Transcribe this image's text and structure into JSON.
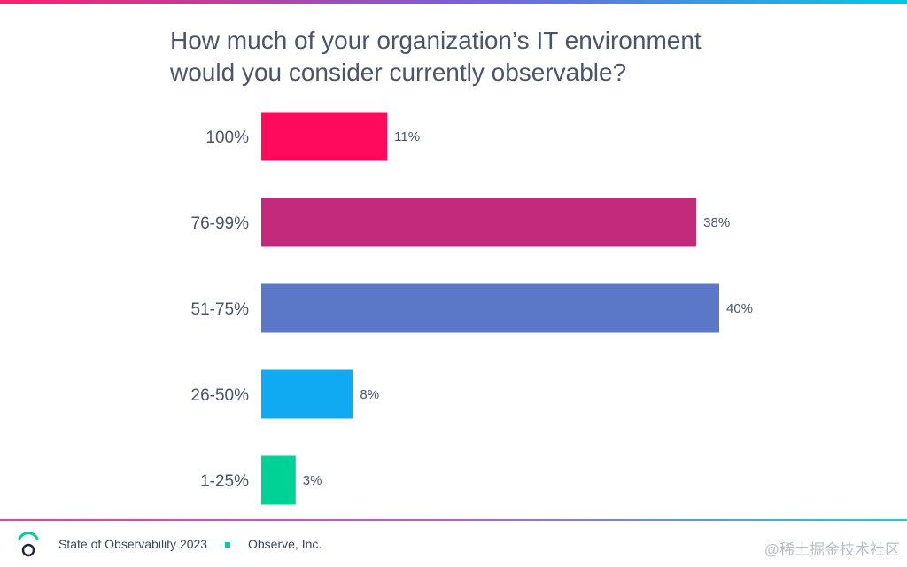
{
  "chart_data": {
    "type": "bar",
    "orientation": "horizontal",
    "title": "How much of your organization’s IT environment would you consider currently observable?",
    "title_lines": [
      "How much of your organization’s IT environment",
      "would you consider currently observable?"
    ],
    "categories": [
      "100%",
      "76-99%",
      "51-75%",
      "26-50%",
      "1-25%"
    ],
    "values": [
      11,
      38,
      40,
      8,
      3
    ],
    "value_labels": [
      "11%",
      "38%",
      "40%",
      "8%",
      "3%"
    ],
    "bar_colors": [
      "#ff0a5d",
      "#c42a7b",
      "#5b78c8",
      "#10aaf2",
      "#00d195"
    ],
    "xlim": [
      0,
      40
    ],
    "xlabel": "",
    "ylabel": "",
    "grid": false
  },
  "footer": {
    "report_name": "State of Observability 2023",
    "company": "Observe, Inc.",
    "watermark": "@稀土掘金技术社区"
  },
  "colors": {
    "title": "#4a5568",
    "text": "#4a5568",
    "accent": "#10c79a"
  }
}
